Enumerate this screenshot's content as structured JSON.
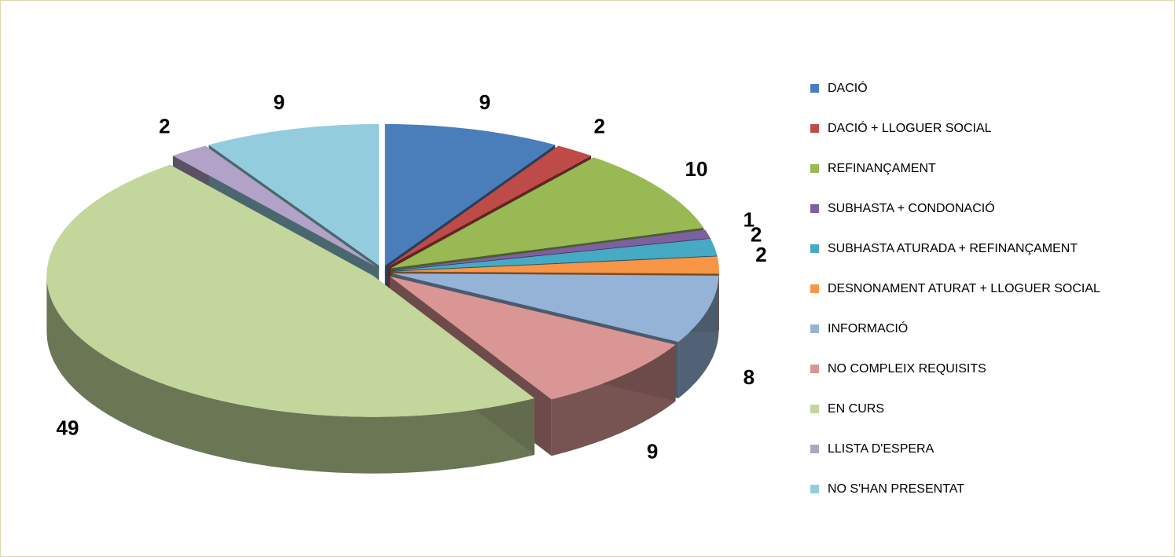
{
  "chart_data": {
    "type": "pie",
    "categories": [
      "DACIÓ",
      "DACIÓ + LLOGUER SOCIAL",
      "REFINANÇAMENT",
      "SUBHASTA + CONDONACIÓ",
      "SUBHASTA ATURADA + REFINANÇAMENT",
      "DESNONAMENT ATURAT + LLOGUER SOCIAL",
      "INFORMACIÓ",
      "NO COMPLEIX REQUISITS",
      "EN CURS",
      "LLISTA D'ESPERA",
      "NO S'HAN PRESENTAT"
    ],
    "values": [
      9,
      2,
      10,
      1,
      2,
      2,
      8,
      9,
      49,
      2,
      9
    ],
    "colors": [
      "#4a7ebb",
      "#be4b48",
      "#98b954",
      "#7d60a0",
      "#46aac5",
      "#f79646",
      "#95b3d7",
      "#d99694",
      "#c3d69b",
      "#b3a2c7",
      "#93cddd"
    ],
    "legend": "right"
  }
}
